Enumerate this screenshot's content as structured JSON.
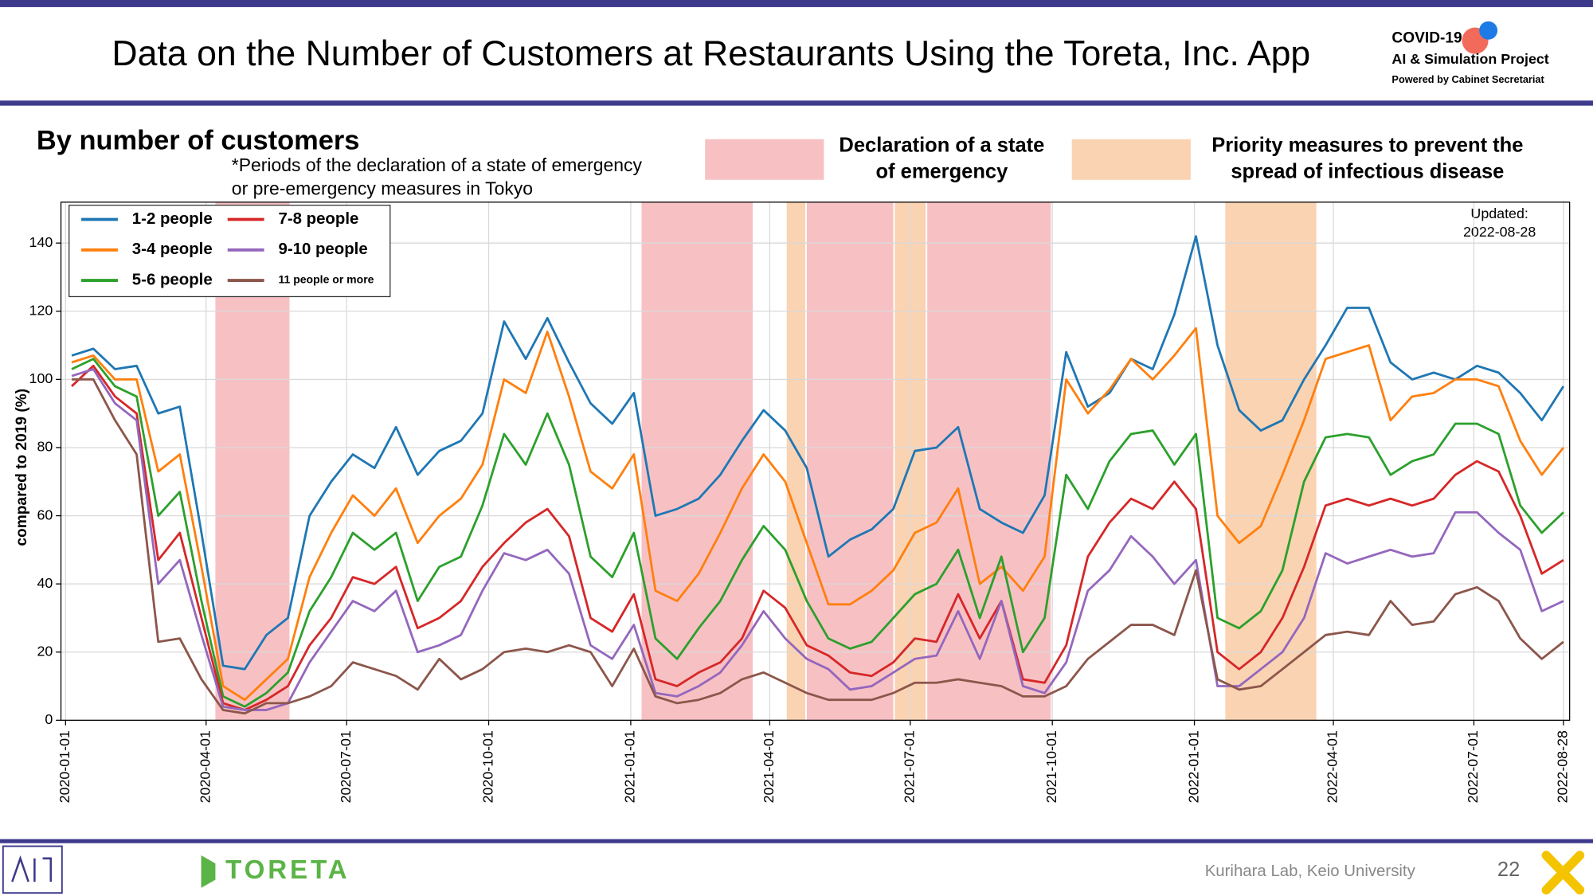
{
  "header": {
    "title": "Data on the Number of Customers at Restaurants Using the Toreta, Inc. App",
    "logo_line1": "COVID-19",
    "logo_line2": "AI & Simulation Project",
    "logo_line3": "Powered by Cabinet Secretariat"
  },
  "footer": {
    "brand": "TORETA",
    "credit": "Kurihara Lab, Keio University",
    "page": "22"
  },
  "chart_data": {
    "type": "line",
    "title": "By number of customers",
    "note": [
      "*Periods of the declaration of a state of emergency",
      "or pre-emergency measures in Tokyo"
    ],
    "updated_label": "Updated:",
    "updated_date": "2022-08-28",
    "ylabel": "compared to 2019 (%)",
    "xlim": [
      "2019-12-29",
      "2022-09-01"
    ],
    "xticks": [
      "2020-01-01",
      "2020-04-01",
      "2020-07-01",
      "2020-10-01",
      "2021-01-01",
      "2021-04-01",
      "2021-07-01",
      "2021-10-01",
      "2022-01-01",
      "2022-04-01",
      "2022-07-01",
      "2022-08-28"
    ],
    "ylim": [
      0,
      152
    ],
    "yticks": [
      0,
      20,
      40,
      60,
      80,
      100,
      120,
      140
    ],
    "grid": true,
    "legend": "upper left",
    "periods": [
      {
        "kind": "emergency",
        "start": "2020-04-07",
        "end": "2020-05-25"
      },
      {
        "kind": "emergency",
        "start": "2021-01-08",
        "end": "2021-03-21"
      },
      {
        "kind": "priority",
        "start": "2021-04-12",
        "end": "2021-04-24"
      },
      {
        "kind": "emergency",
        "start": "2021-04-25",
        "end": "2021-06-20"
      },
      {
        "kind": "priority",
        "start": "2021-06-21",
        "end": "2021-07-11"
      },
      {
        "kind": "emergency",
        "start": "2021-07-12",
        "end": "2021-09-30"
      },
      {
        "kind": "priority",
        "start": "2022-01-21",
        "end": "2022-03-21"
      }
    ],
    "period_legend": [
      {
        "kind": "emergency",
        "color": "#f7c1c4",
        "label": [
          "Declaration of a state",
          "of emergency"
        ]
      },
      {
        "kind": "priority",
        "color": "#fad3b3",
        "label": [
          "Priority measures to prevent the",
          "spread of infectious disease"
        ]
      }
    ],
    "x": [
      "2020-01-05",
      "2020-01-19",
      "2020-02-02",
      "2020-02-16",
      "2020-03-01",
      "2020-03-15",
      "2020-03-29",
      "2020-04-12",
      "2020-04-26",
      "2020-05-10",
      "2020-05-24",
      "2020-06-07",
      "2020-06-21",
      "2020-07-05",
      "2020-07-19",
      "2020-08-02",
      "2020-08-16",
      "2020-08-30",
      "2020-09-13",
      "2020-09-27",
      "2020-10-11",
      "2020-10-25",
      "2020-11-08",
      "2020-11-22",
      "2020-12-06",
      "2020-12-20",
      "2021-01-03",
      "2021-01-17",
      "2021-01-31",
      "2021-02-14",
      "2021-02-28",
      "2021-03-14",
      "2021-03-28",
      "2021-04-11",
      "2021-04-25",
      "2021-05-09",
      "2021-05-23",
      "2021-06-06",
      "2021-06-20",
      "2021-07-04",
      "2021-07-18",
      "2021-08-01",
      "2021-08-15",
      "2021-08-29",
      "2021-09-12",
      "2021-09-26",
      "2021-10-10",
      "2021-10-24",
      "2021-11-07",
      "2021-11-21",
      "2021-12-05",
      "2021-12-19",
      "2022-01-02",
      "2022-01-16",
      "2022-01-30",
      "2022-02-13",
      "2022-02-27",
      "2022-03-13",
      "2022-03-27",
      "2022-04-10",
      "2022-04-24",
      "2022-05-08",
      "2022-05-22",
      "2022-06-05",
      "2022-06-19",
      "2022-07-03",
      "2022-07-17",
      "2022-07-31",
      "2022-08-14",
      "2022-08-28"
    ],
    "series": [
      {
        "name": "1-2 people",
        "color": "#1f77b4",
        "values": [
          107,
          109,
          103,
          104,
          90,
          92,
          55,
          16,
          15,
          25,
          30,
          60,
          70,
          78,
          74,
          86,
          72,
          79,
          82,
          90,
          117,
          106,
          118,
          105,
          93,
          87,
          96,
          60,
          62,
          65,
          72,
          82,
          91,
          85,
          74,
          48,
          53,
          56,
          62,
          79,
          80,
          86,
          62,
          58,
          55,
          66,
          108,
          92,
          96,
          106,
          103,
          119,
          142,
          110,
          91,
          85,
          88,
          100,
          110,
          121,
          121,
          105,
          100,
          102,
          100,
          104,
          102,
          96,
          88,
          98
        ]
      },
      {
        "name": "3-4 people",
        "color": "#ff7f0e",
        "values": [
          105,
          107,
          100,
          100,
          73,
          78,
          45,
          10,
          6,
          12,
          18,
          42,
          55,
          66,
          60,
          68,
          52,
          60,
          65,
          75,
          100,
          96,
          114,
          95,
          73,
          68,
          78,
          38,
          35,
          43,
          55,
          68,
          78,
          70,
          52,
          34,
          34,
          38,
          44,
          55,
          58,
          68,
          40,
          45,
          38,
          48,
          100,
          90,
          97,
          106,
          100,
          107,
          115,
          60,
          52,
          57,
          72,
          88,
          106,
          108,
          110,
          88,
          95,
          96,
          100,
          100,
          98,
          82,
          72,
          80
        ]
      },
      {
        "name": "5-6 people",
        "color": "#2ca02c",
        "values": [
          103,
          106,
          98,
          95,
          60,
          67,
          35,
          7,
          4,
          8,
          14,
          32,
          42,
          55,
          50,
          55,
          35,
          45,
          48,
          63,
          84,
          75,
          90,
          75,
          48,
          42,
          55,
          24,
          18,
          27,
          35,
          47,
          57,
          50,
          35,
          24,
          21,
          23,
          30,
          37,
          40,
          50,
          30,
          48,
          20,
          30,
          72,
          62,
          76,
          84,
          85,
          75,
          84,
          30,
          27,
          32,
          44,
          70,
          83,
          84,
          83,
          72,
          76,
          78,
          87,
          87,
          84,
          63,
          55,
          61
        ]
      },
      {
        "name": "7-8 people",
        "color": "#d62728",
        "values": [
          98,
          104,
          95,
          90,
          47,
          55,
          30,
          5,
          3,
          6,
          10,
          22,
          30,
          42,
          40,
          45,
          27,
          30,
          35,
          45,
          52,
          58,
          62,
          54,
          30,
          26,
          37,
          12,
          10,
          14,
          17,
          24,
          38,
          33,
          22,
          19,
          14,
          13,
          17,
          24,
          23,
          37,
          24,
          35,
          12,
          11,
          22,
          48,
          58,
          65,
          62,
          70,
          62,
          20,
          15,
          20,
          30,
          45,
          63,
          65,
          63,
          65,
          63,
          65,
          72,
          76,
          73,
          60,
          43,
          47
        ]
      },
      {
        "name": "9-10 people",
        "color": "#9467bd",
        "values": [
          101,
          103,
          93,
          88,
          40,
          47,
          25,
          4,
          3,
          3,
          5,
          17,
          26,
          35,
          32,
          38,
          20,
          22,
          25,
          38,
          49,
          47,
          50,
          43,
          22,
          18,
          28,
          8,
          7,
          10,
          14,
          22,
          32,
          24,
          18,
          15,
          9,
          10,
          14,
          18,
          19,
          32,
          18,
          35,
          10,
          8,
          17,
          38,
          44,
          54,
          48,
          40,
          47,
          10,
          10,
          15,
          20,
          30,
          49,
          46,
          48,
          50,
          48,
          49,
          61,
          61,
          55,
          50,
          32,
          35
        ]
      },
      {
        "name": "11 people or more",
        "color": "#8c564b",
        "values": [
          100,
          100,
          88,
          78,
          23,
          24,
          12,
          3,
          2,
          5,
          5,
          7,
          10,
          17,
          15,
          13,
          9,
          18,
          12,
          15,
          20,
          21,
          20,
          22,
          20,
          10,
          21,
          7,
          5,
          6,
          8,
          12,
          14,
          11,
          8,
          6,
          6,
          6,
          8,
          11,
          11,
          12,
          11,
          10,
          7,
          7,
          10,
          18,
          23,
          28,
          28,
          25,
          44,
          12,
          9,
          10,
          15,
          20,
          25,
          26,
          25,
          35,
          28,
          29,
          37,
          39,
          35,
          24,
          18,
          23
        ]
      }
    ]
  }
}
